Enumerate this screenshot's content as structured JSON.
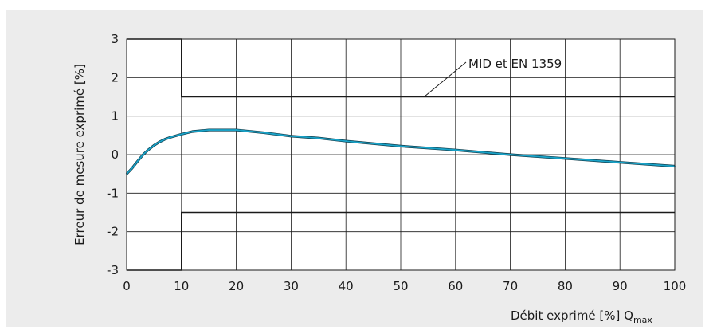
{
  "chart_data": {
    "type": "line",
    "xlabel": "Débit exprimé [%] Q",
    "xlabel_sub": "max",
    "ylabel": "Erreur de mesure exprimé [%]",
    "xlim": [
      0,
      100
    ],
    "ylim": [
      -3,
      3
    ],
    "xticks": [
      "0",
      "10",
      "20",
      "30",
      "40",
      "50",
      "60",
      "70",
      "80",
      "90",
      "100"
    ],
    "yticks": [
      "3",
      "2",
      "1",
      "0",
      "-1",
      "-2",
      "-3"
    ],
    "grid": true,
    "annotation": "MID et EN 1359",
    "limits": {
      "upper": [
        [
          0,
          3
        ],
        [
          10,
          3
        ],
        [
          10,
          1.5
        ],
        [
          100,
          1.5
        ]
      ],
      "lower": [
        [
          0,
          -3
        ],
        [
          10,
          -3
        ],
        [
          10,
          -1.5
        ],
        [
          100,
          -1.5
        ]
      ]
    },
    "series": [
      {
        "color": "#1aa3c8",
        "x": [
          0,
          1,
          2,
          3,
          4,
          5,
          6,
          7,
          8,
          10,
          12,
          15,
          20,
          25,
          30,
          35,
          40,
          50,
          60,
          70,
          80,
          90,
          100
        ],
        "y": [
          -0.5,
          -0.35,
          -0.17,
          0,
          0.13,
          0.24,
          0.33,
          0.4,
          0.45,
          0.53,
          0.6,
          0.64,
          0.64,
          0.57,
          0.48,
          0.43,
          0.35,
          0.22,
          0.12,
          0,
          -0.1,
          -0.2,
          -0.3
        ]
      }
    ]
  }
}
